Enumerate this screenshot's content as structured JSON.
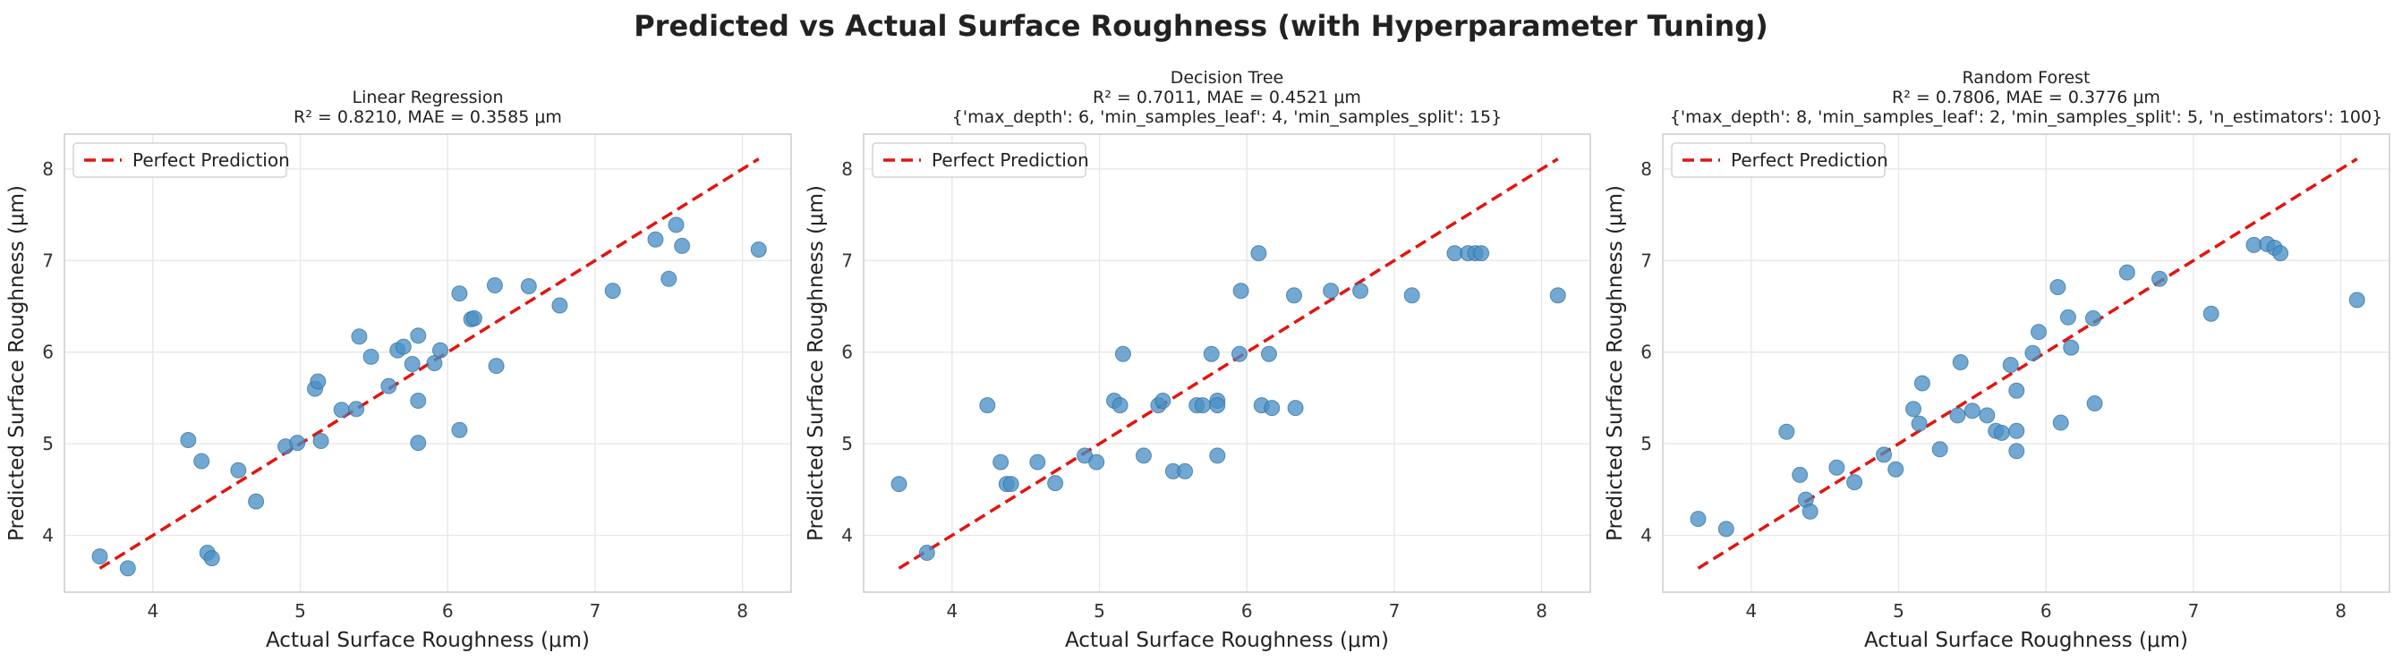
{
  "figure": {
    "suptitle": "Predicted vs Actual Surface Roughness (with Hyperparameter Tuning)"
  },
  "chart_data": [
    {
      "type": "scatter",
      "title_lines": [
        "Linear Regression",
        "R² = 0.8210, MAE = 0.3585 μm"
      ],
      "xlabel": "Actual Surface Roughness (μm)",
      "ylabel": "Predicted Surface Roughness (μm)",
      "xlim": [
        3.4,
        8.33
      ],
      "ylim": [
        3.38,
        8.38
      ],
      "xticks": [
        4,
        5,
        6,
        7,
        8
      ],
      "yticks": [
        4,
        5,
        6,
        7,
        8
      ],
      "grid": true,
      "legend_position": "top-left",
      "point_color": "#4a90c4",
      "series": [
        {
          "name": "",
          "x": [
            3.64,
            3.83,
            4.24,
            4.33,
            4.37,
            4.4,
            4.58,
            4.7,
            4.9,
            4.98,
            5.1,
            5.12,
            5.14,
            5.28,
            5.38,
            5.4,
            5.48,
            5.6,
            5.66,
            5.7,
            5.76,
            5.8,
            5.8,
            5.8,
            5.91,
            5.95,
            6.08,
            6.08,
            6.16,
            6.18,
            6.32,
            6.33,
            6.55,
            6.76,
            7.12,
            7.41,
            7.5,
            7.55,
            7.59,
            8.11
          ],
          "y": [
            3.77,
            3.64,
            5.04,
            4.81,
            3.81,
            3.75,
            4.71,
            4.37,
            4.97,
            5.01,
            5.6,
            5.68,
            5.03,
            5.37,
            5.38,
            6.17,
            5.95,
            5.63,
            6.02,
            6.06,
            5.87,
            6.18,
            5.47,
            5.01,
            5.88,
            6.02,
            6.64,
            5.15,
            6.36,
            6.37,
            6.73,
            5.85,
            6.72,
            6.51,
            6.67,
            7.23,
            6.8,
            7.39,
            7.16,
            7.12
          ]
        }
      ],
      "reference_line": {
        "name": "Perfect Prediction",
        "color": "#e3140f",
        "x": [
          3.64,
          8.11
        ],
        "y": [
          3.64,
          8.11
        ]
      }
    },
    {
      "type": "scatter",
      "title_lines": [
        "Decision Tree",
        "R² = 0.7011, MAE = 0.4521 μm",
        "{'max_depth': 6, 'min_samples_leaf': 4, 'min_samples_split': 15}"
      ],
      "xlabel": "Actual Surface Roughness (μm)",
      "ylabel": "Predicted Surface Roughness (μm)",
      "xlim": [
        3.4,
        8.33
      ],
      "ylim": [
        3.38,
        8.38
      ],
      "xticks": [
        4,
        5,
        6,
        7,
        8
      ],
      "yticks": [
        4,
        5,
        6,
        7,
        8
      ],
      "grid": true,
      "legend_position": "top-left",
      "point_color": "#4a90c4",
      "series": [
        {
          "name": "",
          "x": [
            3.64,
            3.83,
            4.24,
            4.33,
            4.37,
            4.4,
            4.58,
            4.7,
            4.9,
            4.98,
            5.1,
            5.14,
            5.16,
            5.3,
            5.4,
            5.43,
            5.5,
            5.58,
            5.66,
            5.7,
            5.76,
            5.8,
            5.8,
            5.8,
            5.95,
            5.96,
            6.08,
            6.1,
            6.15,
            6.17,
            6.32,
            6.33,
            6.57,
            6.77,
            7.12,
            7.41,
            7.5,
            7.55,
            7.59,
            8.11
          ],
          "y": [
            4.56,
            3.81,
            5.42,
            4.8,
            4.56,
            4.56,
            4.8,
            4.57,
            4.87,
            4.8,
            5.47,
            5.42,
            5.98,
            4.87,
            5.42,
            5.47,
            4.7,
            4.7,
            5.42,
            5.42,
            5.98,
            5.47,
            5.42,
            4.87,
            5.98,
            6.67,
            7.08,
            5.42,
            5.98,
            5.39,
            6.62,
            5.39,
            6.67,
            6.67,
            6.62,
            7.08,
            7.08,
            7.08,
            7.08,
            6.62
          ]
        }
      ],
      "reference_line": {
        "name": "Perfect Prediction",
        "color": "#e3140f",
        "x": [
          3.64,
          8.11
        ],
        "y": [
          3.64,
          8.11
        ]
      }
    },
    {
      "type": "scatter",
      "title_lines": [
        "Random Forest",
        "R² = 0.7806, MAE = 0.3776 μm",
        "{'max_depth': 8, 'min_samples_leaf': 2, 'min_samples_split': 5, 'n_estimators': 100}"
      ],
      "xlabel": "Actual Surface Roughness (μm)",
      "ylabel": "Predicted Surface Roughness (μm)",
      "xlim": [
        3.4,
        8.33
      ],
      "ylim": [
        3.38,
        8.38
      ],
      "xticks": [
        4,
        5,
        6,
        7,
        8
      ],
      "yticks": [
        4,
        5,
        6,
        7,
        8
      ],
      "grid": true,
      "legend_position": "top-left",
      "point_color": "#4a90c4",
      "series": [
        {
          "name": "",
          "x": [
            3.64,
            3.83,
            4.24,
            4.33,
            4.37,
            4.4,
            4.58,
            4.7,
            4.9,
            4.98,
            5.1,
            5.14,
            5.16,
            5.28,
            5.4,
            5.42,
            5.5,
            5.6,
            5.66,
            5.7,
            5.76,
            5.8,
            5.8,
            5.8,
            5.91,
            5.95,
            6.08,
            6.1,
            6.15,
            6.17,
            6.32,
            6.33,
            6.55,
            6.77,
            7.12,
            7.41,
            7.5,
            7.55,
            7.59,
            8.11
          ],
          "y": [
            4.18,
            4.07,
            5.13,
            4.66,
            4.39,
            4.26,
            4.74,
            4.58,
            4.88,
            4.72,
            5.38,
            5.22,
            5.66,
            4.94,
            5.31,
            5.89,
            5.36,
            5.31,
            5.14,
            5.12,
            5.86,
            5.58,
            5.14,
            4.92,
            5.99,
            6.22,
            6.71,
            5.23,
            6.38,
            6.05,
            6.37,
            5.44,
            6.87,
            6.8,
            6.42,
            7.17,
            7.18,
            7.14,
            7.08,
            6.57
          ]
        }
      ],
      "reference_line": {
        "name": "Perfect Prediction",
        "color": "#e3140f",
        "x": [
          3.64,
          8.11
        ],
        "y": [
          3.64,
          8.11
        ]
      }
    }
  ]
}
